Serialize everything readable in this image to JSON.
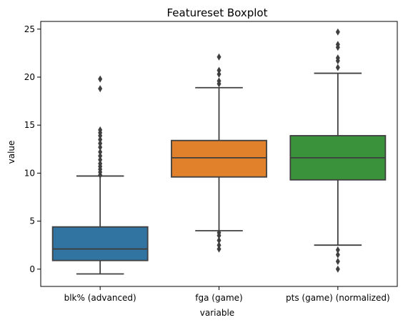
{
  "chart_data": {
    "type": "boxplot",
    "title": "Featureset Boxplot",
    "xlabel": "variable",
    "ylabel": "value",
    "ylim": [
      -1.8,
      25.8
    ],
    "yticks": [
      0,
      5,
      10,
      15,
      20,
      25
    ],
    "grid": false,
    "categories": [
      "blk% (advanced)",
      "fga (game)",
      "pts (game) (normalized)"
    ],
    "colors": [
      "#3274a1",
      "#e1812c",
      "#3a923a"
    ],
    "boxes": [
      {
        "category": "blk% (advanced)",
        "whisker_low": -0.5,
        "q1": 0.9,
        "median": 2.1,
        "q3": 4.4,
        "whisker_high": 9.7,
        "outliers": [
          9.8,
          10.1,
          10.4,
          10.7,
          11.0,
          11.4,
          11.8,
          12.2,
          12.7,
          13.1,
          13.5,
          13.9,
          14.2,
          14.5,
          18.8,
          19.8
        ]
      },
      {
        "category": "fga (game)",
        "whisker_low": 4.0,
        "q1": 9.6,
        "median": 11.6,
        "q3": 13.4,
        "whisker_high": 18.9,
        "outliers": [
          2.1,
          2.5,
          3.0,
          3.5,
          3.8,
          19.3,
          19.6,
          20.3,
          20.7,
          22.1
        ]
      },
      {
        "category": "pts (game) (normalized)",
        "whisker_low": 2.5,
        "q1": 9.3,
        "median": 11.6,
        "q3": 13.9,
        "whisker_high": 20.4,
        "outliers": [
          0.0,
          0.8,
          1.5,
          2.0,
          21.0,
          21.7,
          22.0,
          23.1,
          23.4,
          24.7
        ]
      }
    ]
  }
}
